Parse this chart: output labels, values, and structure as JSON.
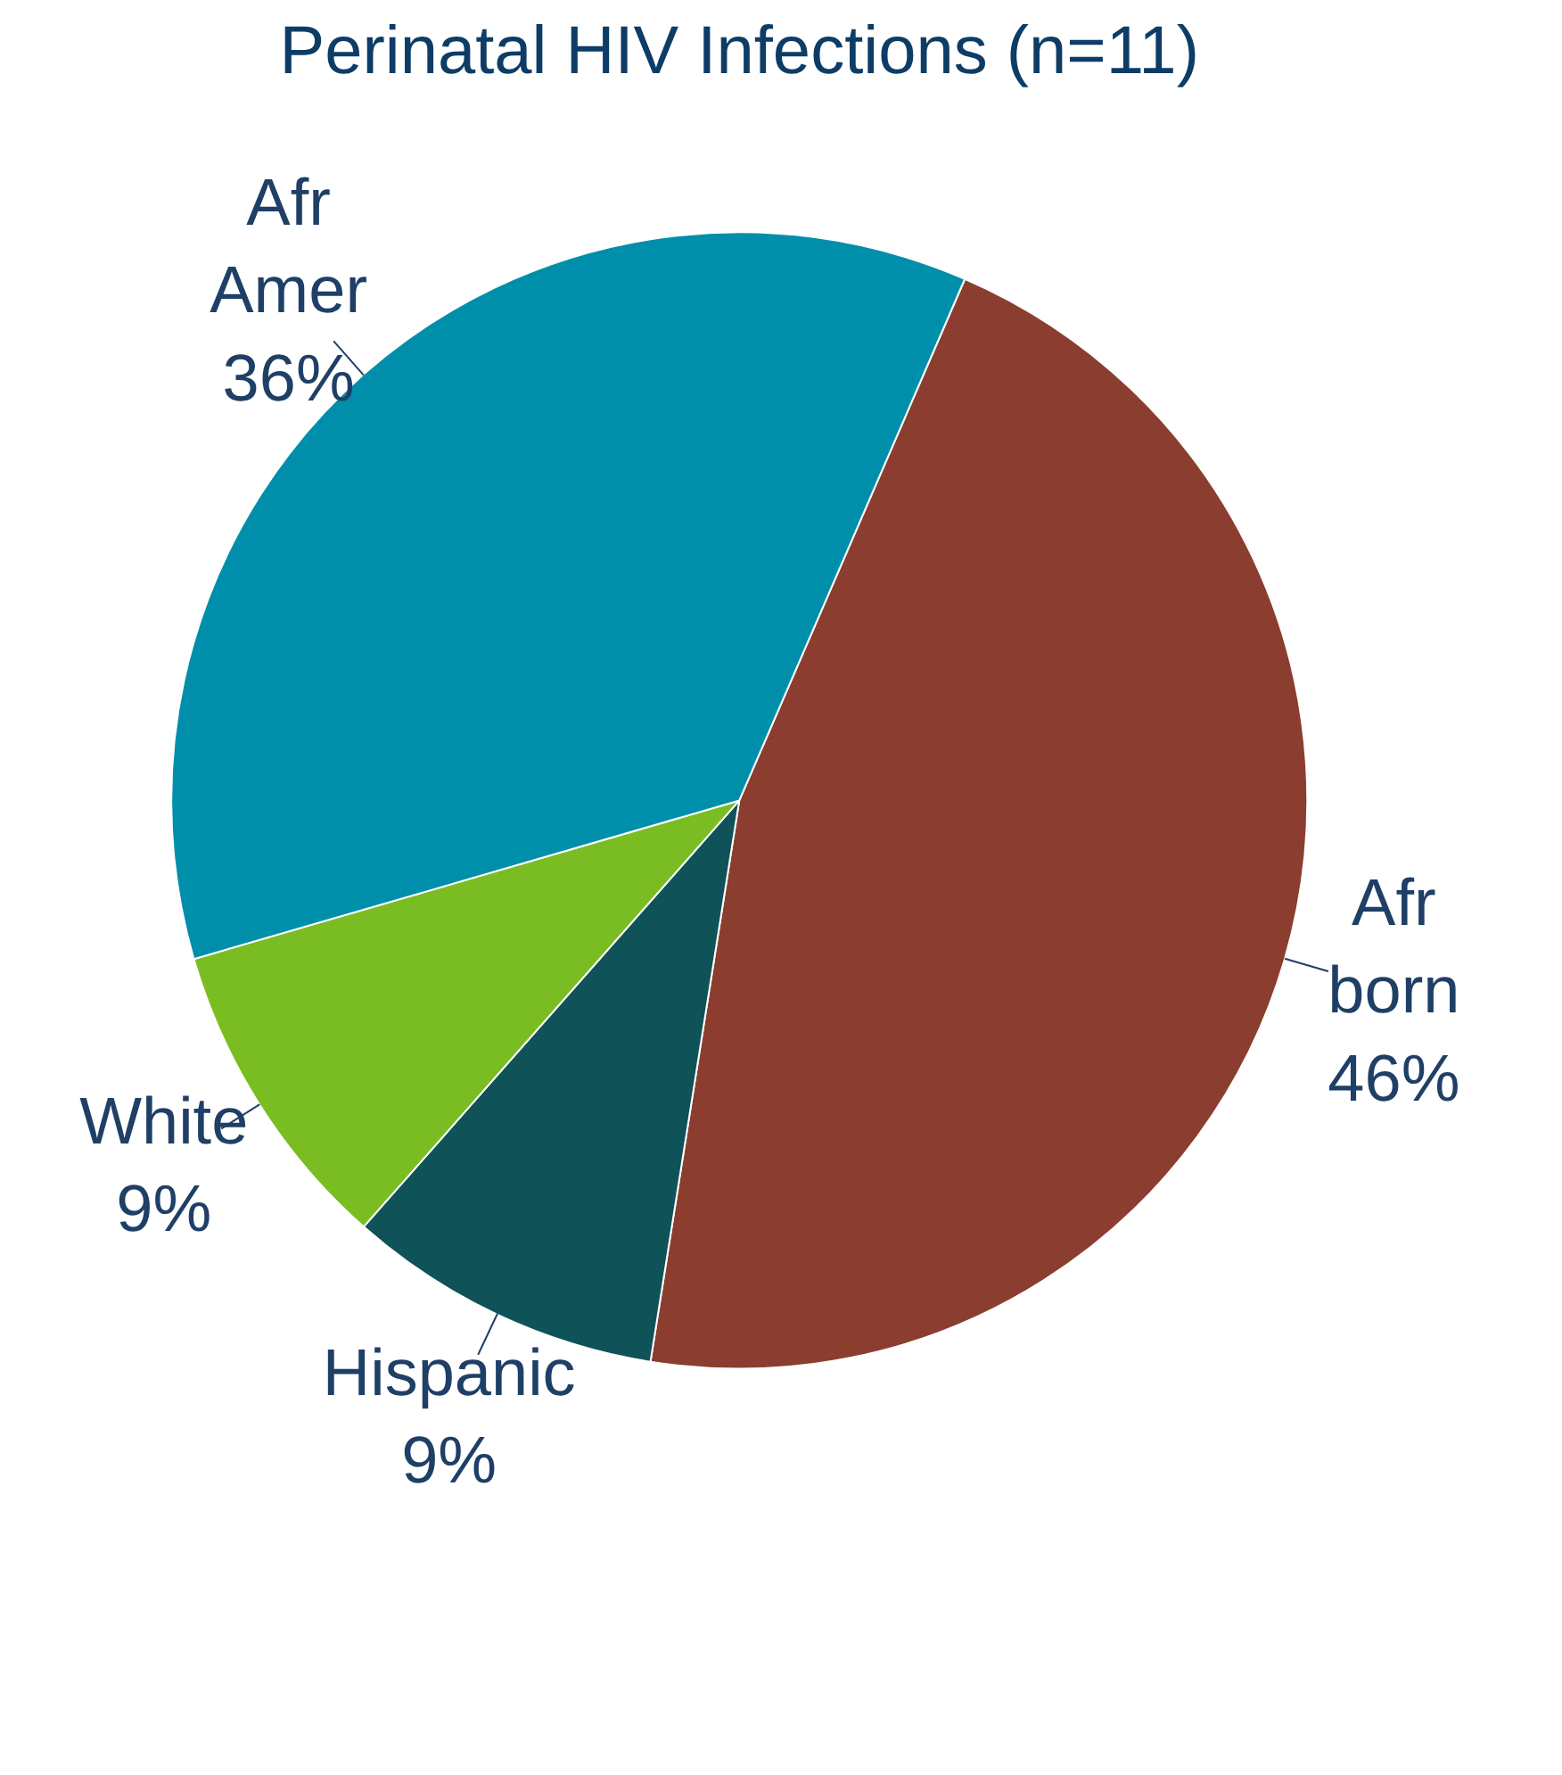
{
  "chart_data": {
    "type": "pie",
    "title": "Perinatal HIV Infections (n=11)",
    "categories": [
      "Afr born",
      "Hispanic",
      "White",
      "Afr Amer"
    ],
    "values": [
      46,
      9,
      9,
      36
    ],
    "colors": [
      "#8b3e2f",
      "#0f5257",
      "#7abd22",
      "#008fab"
    ],
    "value_labels": [
      "46%",
      "9%",
      "9%",
      "36%"
    ]
  }
}
